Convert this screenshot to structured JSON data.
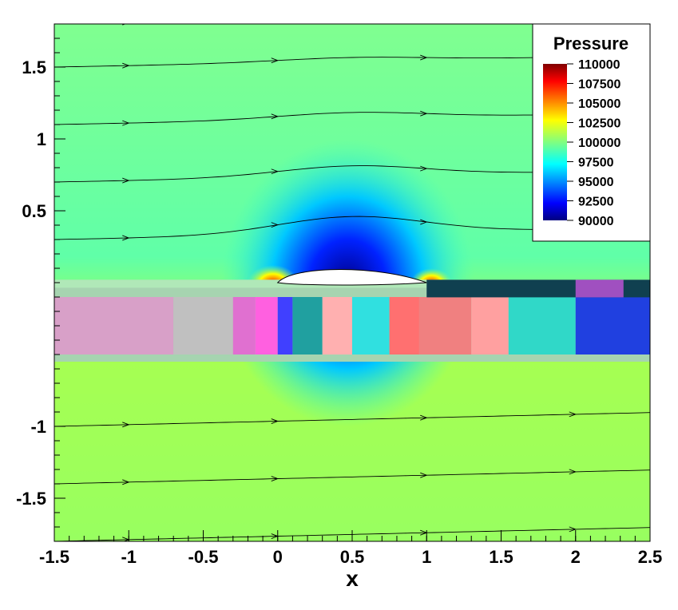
{
  "chart_data": {
    "type": "heatmap",
    "title": "",
    "xlabel": "x",
    "ylabel": "",
    "xlim": [
      -1.5,
      2.5
    ],
    "ylim": [
      -1.8,
      1.8
    ],
    "x_ticks": [
      -1.5,
      -1,
      -0.5,
      0,
      0.5,
      1,
      1.5,
      2,
      2.5
    ],
    "x_tick_labels": [
      "-1.5",
      "-1",
      "-0.5",
      "0",
      "0.5",
      "1",
      "1.5",
      "2",
      "2.5"
    ],
    "y_ticks": [
      1.5,
      1,
      0.5,
      -1,
      -1.5
    ],
    "y_tick_labels": [
      "1.5",
      "1",
      "0.5",
      "-1",
      "-1.5"
    ],
    "colorbar": {
      "title": "Pressure",
      "levels": [
        110000,
        107500,
        105000,
        102500,
        100000,
        97500,
        95000,
        92500,
        90000
      ],
      "level_labels": [
        "110000",
        "107500",
        "105000",
        "102500",
        "100000",
        "97500",
        "95000",
        "92500",
        "90000"
      ],
      "min": 90000,
      "max": 110000,
      "colormap": "jet",
      "placement": "top-right"
    },
    "airfoil": {
      "leading_edge_x": 0,
      "trailing_edge_x": 1,
      "max_thickness_y": 0.1
    },
    "freestream_pressure": 100500,
    "streamline_starts_y": [
      1.8,
      1.5,
      1.1,
      0.7,
      0.3,
      -1.0,
      -1.4,
      -1.8
    ]
  }
}
